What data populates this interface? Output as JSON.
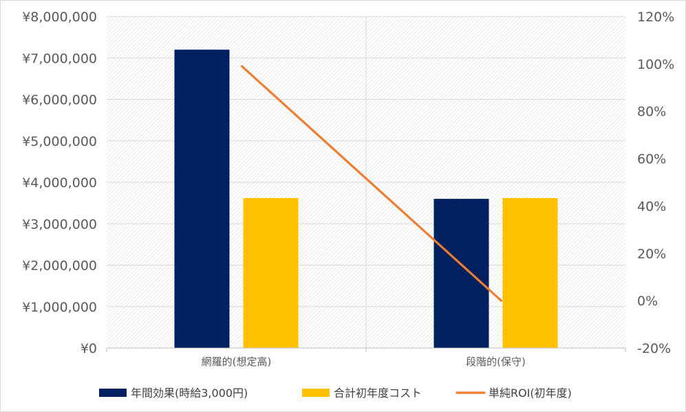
{
  "chart_data": {
    "type": "bar",
    "categories": [
      "網羅的(想定高)",
      "段階的(保守)"
    ],
    "series": [
      {
        "name": "年間効果(時給3,000円)",
        "kind": "bar",
        "axis": "left",
        "color": "#002060",
        "values": [
          7200000,
          3600000
        ]
      },
      {
        "name": "合計初年度コスト",
        "kind": "bar",
        "axis": "left",
        "color": "#FFC000",
        "values": [
          3620000,
          3620000
        ]
      },
      {
        "name": "単純ROI(初年度)",
        "kind": "line",
        "axis": "right",
        "color": "#ED7D31",
        "values": [
          99,
          0
        ]
      }
    ],
    "y_left": {
      "min": 0,
      "max": 8000000,
      "step": 1000000,
      "tick_labels": [
        "¥0",
        "¥1,000,000",
        "¥2,000,000",
        "¥3,000,000",
        "¥4,000,000",
        "¥5,000,000",
        "¥6,000,000",
        "¥7,000,000",
        "¥8,000,000"
      ]
    },
    "y_right": {
      "min": -20,
      "max": 120,
      "step": 20,
      "tick_labels": [
        "-20%",
        "0%",
        "20%",
        "40%",
        "60%",
        "80%",
        "100%",
        "120%"
      ]
    },
    "grid": true,
    "legend_position": "bottom"
  }
}
